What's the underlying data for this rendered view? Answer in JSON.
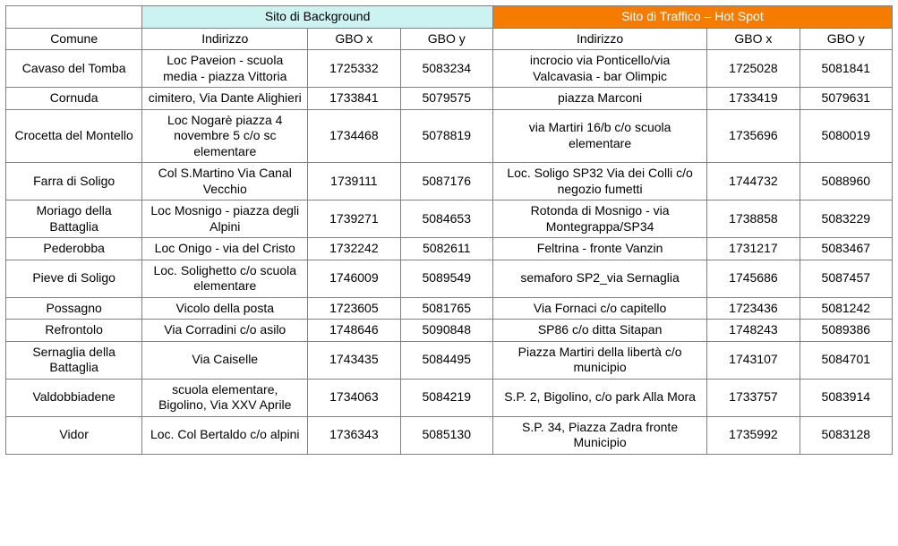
{
  "colors": {
    "header_background_bg": "#ccf2f2",
    "header_traffic_bg": "#f57c00",
    "header_traffic_text": "#ffffff",
    "border": "#808080",
    "text": "#000000",
    "page_bg": "#ffffff"
  },
  "typography": {
    "font_family": "Arial",
    "font_size_pt": 10
  },
  "header": {
    "group_bg": "Sito di Background",
    "group_traffic": "Sito di Traffico – Hot Spot",
    "comune": "Comune",
    "indirizzo": "Indirizzo",
    "gbox": "GBO x",
    "gboy": "GBO y"
  },
  "rows": [
    {
      "comune": "Cavaso del Tomba",
      "bg_addr": "Loc Paveion - scuola media - piazza Vittoria",
      "bg_x": "1725332",
      "bg_y": "5083234",
      "tr_addr": "incrocio via Ponticello/via Valcavasia - bar Olimpic",
      "tr_x": "1725028",
      "tr_y": "5081841"
    },
    {
      "comune": "Cornuda",
      "bg_addr": "cimitero, Via Dante Alighieri",
      "bg_x": "1733841",
      "bg_y": "5079575",
      "tr_addr": "piazza Marconi",
      "tr_x": "1733419",
      "tr_y": "5079631"
    },
    {
      "comune": "Crocetta del Montello",
      "bg_addr": "Loc Nogarè piazza 4 novembre 5 c/o sc elementare",
      "bg_x": "1734468",
      "bg_y": "5078819",
      "tr_addr": "via Martiri 16/b c/o scuola elementare",
      "tr_x": "1735696",
      "tr_y": "5080019"
    },
    {
      "comune": "Farra di Soligo",
      "bg_addr": "Col S.Martino Via Canal Vecchio",
      "bg_x": "1739111",
      "bg_y": "5087176",
      "tr_addr": "Loc. Soligo SP32 Via dei Colli c/o negozio fumetti",
      "tr_x": "1744732",
      "tr_y": "5088960"
    },
    {
      "comune": "Moriago della Battaglia",
      "bg_addr": "Loc Mosnigo - piazza degli Alpini",
      "bg_x": "1739271",
      "bg_y": "5084653",
      "tr_addr": "Rotonda di Mosnigo - via Montegrappa/SP34",
      "tr_x": "1738858",
      "tr_y": "5083229"
    },
    {
      "comune": "Pederobba",
      "bg_addr": "Loc Onigo - via del Cristo",
      "bg_x": "1732242",
      "bg_y": "5082611",
      "tr_addr": "Feltrina - fronte Vanzin",
      "tr_x": "1731217",
      "tr_y": "5083467"
    },
    {
      "comune": "Pieve di Soligo",
      "bg_addr": "Loc. Solighetto c/o scuola elementare",
      "bg_x": "1746009",
      "bg_y": "5089549",
      "tr_addr": "semaforo SP2_via Sernaglia",
      "tr_x": "1745686",
      "tr_y": "5087457"
    },
    {
      "comune": "Possagno",
      "bg_addr": "Vicolo della posta",
      "bg_x": "1723605",
      "bg_y": "5081765",
      "tr_addr": "Via Fornaci c/o capitello",
      "tr_x": "1723436",
      "tr_y": "5081242"
    },
    {
      "comune": "Refrontolo",
      "bg_addr": "Via Corradini c/o asilo",
      "bg_x": "1748646",
      "bg_y": "5090848",
      "tr_addr": "SP86 c/o ditta Sitapan",
      "tr_x": "1748243",
      "tr_y": "5089386"
    },
    {
      "comune": "Sernaglia della Battaglia",
      "bg_addr": "Via Caiselle",
      "bg_x": "1743435",
      "bg_y": "5084495",
      "tr_addr": "Piazza Martiri della libertà c/o municipio",
      "tr_x": "1743107",
      "tr_y": "5084701"
    },
    {
      "comune": "Valdobbiadene",
      "bg_addr": "scuola elementare, Bigolino, Via XXV Aprile",
      "bg_x": "1734063",
      "bg_y": "5084219",
      "tr_addr": "S.P. 2, Bigolino, c/o park Alla Mora",
      "tr_x": "1733757",
      "tr_y": "5083914"
    },
    {
      "comune": "Vidor",
      "bg_addr": "Loc. Col Bertaldo c/o alpini",
      "bg_x": "1736343",
      "bg_y": "5085130",
      "tr_addr": "S.P. 34, Piazza Zadra fronte Municipio",
      "tr_x": "1735992",
      "tr_y": "5083128"
    }
  ]
}
